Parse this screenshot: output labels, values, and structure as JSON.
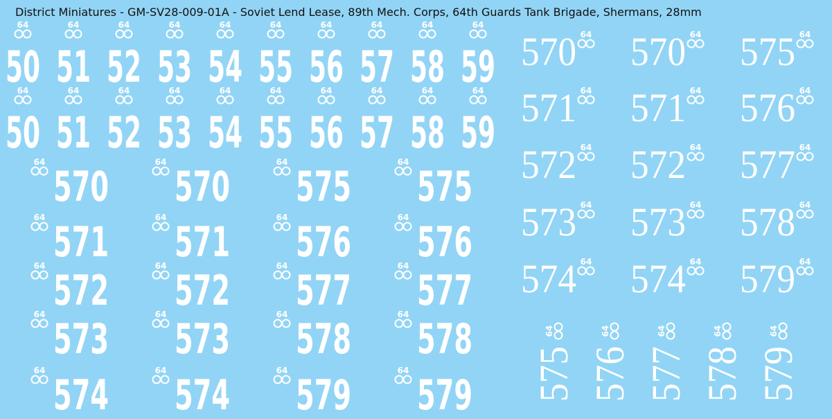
{
  "title": "District Miniatures - GM-SV28-009-01A - Soviet Lend Lease, 89th Mech. Corps, 64th Guards Tank Brigade, Shermans, 28mm",
  "badge": "64",
  "stencil_two_digit": {
    "rows": [
      [
        "50",
        "51",
        "52",
        "53",
        "54",
        "55",
        "56",
        "57",
        "58",
        "59"
      ],
      [
        "50",
        "51",
        "52",
        "53",
        "54",
        "55",
        "56",
        "57",
        "58",
        "59"
      ]
    ]
  },
  "stencil_three_digit": {
    "rows": [
      [
        "570",
        "570",
        "575",
        "575"
      ],
      [
        "571",
        "571",
        "576",
        "576"
      ],
      [
        "572",
        "572",
        "577",
        "577"
      ],
      [
        "573",
        "573",
        "578",
        "578"
      ],
      [
        "574",
        "574",
        "579",
        "579"
      ]
    ]
  },
  "serif": {
    "rows": [
      [
        "570",
        "570",
        "575"
      ],
      [
        "571",
        "571",
        "576"
      ],
      [
        "572",
        "572",
        "577"
      ],
      [
        "573",
        "573",
        "578"
      ],
      [
        "574",
        "574",
        "579"
      ]
    ]
  },
  "serif_vertical": [
    "575",
    "576",
    "577",
    "578",
    "579"
  ]
}
